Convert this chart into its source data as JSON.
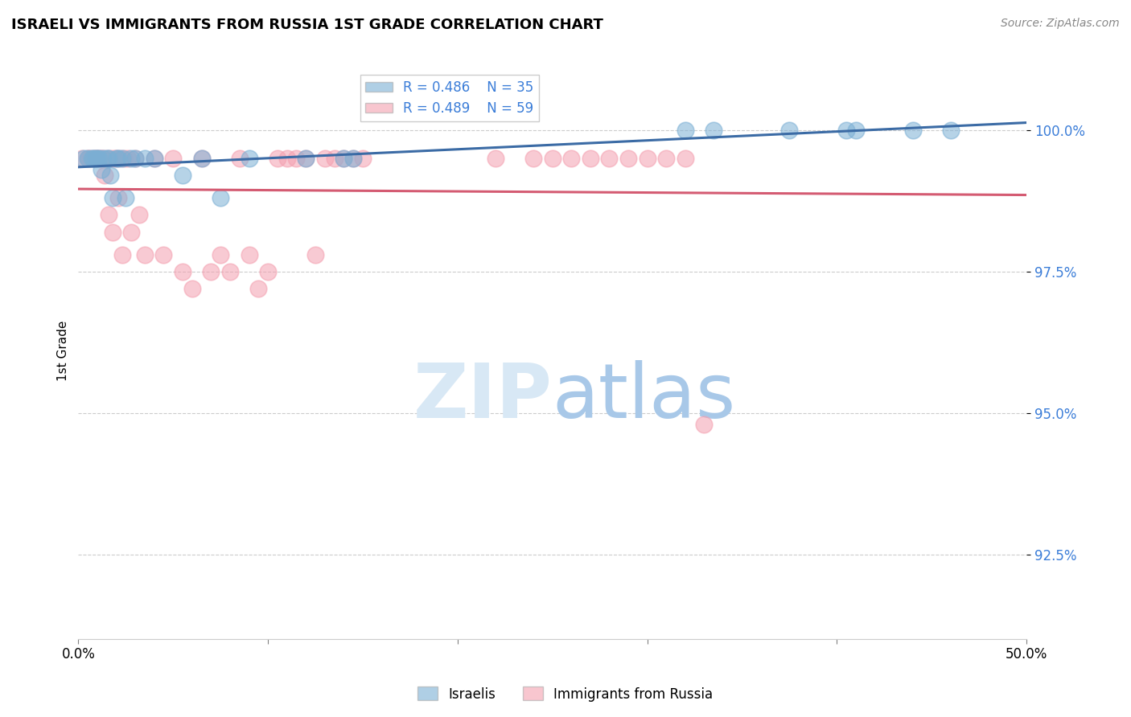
{
  "title": "ISRAELI VS IMMIGRANTS FROM RUSSIA 1ST GRADE CORRELATION CHART",
  "source": "Source: ZipAtlas.com",
  "ylabel": "1st Grade",
  "ytick_values": [
    92.5,
    95.0,
    97.5,
    100.0
  ],
  "xlim": [
    0.0,
    50.0
  ],
  "ylim": [
    91.0,
    101.2
  ],
  "legend_r_blue": "R = 0.486",
  "legend_n_blue": "N = 35",
  "legend_r_pink": "R = 0.489",
  "legend_n_pink": "N = 59",
  "legend_label_blue": "Israelis",
  "legend_label_pink": "Immigrants from Russia",
  "blue_color": "#7BAFD4",
  "pink_color": "#F4A0B0",
  "trend_blue": "#3B6BA5",
  "trend_pink": "#D45B72",
  "israelis_x": [
    0.3,
    0.5,
    0.7,
    0.8,
    0.9,
    1.0,
    1.1,
    1.2,
    1.3,
    1.5,
    1.6,
    1.7,
    1.8,
    2.0,
    2.1,
    2.3,
    2.5,
    2.8,
    3.0,
    3.5,
    4.0,
    5.5,
    6.5,
    7.5,
    9.0,
    12.0,
    14.0,
    14.5,
    32.0,
    33.5,
    37.5,
    40.5,
    41.0,
    44.0,
    46.0
  ],
  "israelis_y": [
    99.5,
    99.5,
    99.5,
    99.5,
    99.5,
    99.5,
    99.5,
    99.3,
    99.5,
    99.5,
    99.5,
    99.2,
    98.8,
    99.5,
    99.5,
    99.5,
    98.8,
    99.5,
    99.5,
    99.5,
    99.5,
    99.2,
    99.5,
    98.8,
    99.5,
    99.5,
    99.5,
    99.5,
    100.0,
    100.0,
    100.0,
    100.0,
    100.0,
    100.0,
    100.0
  ],
  "immigrants_x": [
    0.2,
    0.5,
    0.6,
    0.8,
    0.9,
    1.0,
    1.1,
    1.2,
    1.3,
    1.4,
    1.5,
    1.6,
    1.7,
    1.8,
    1.9,
    2.0,
    2.1,
    2.2,
    2.3,
    2.4,
    2.6,
    2.8,
    3.0,
    3.2,
    3.5,
    4.0,
    4.5,
    5.0,
    5.5,
    6.0,
    6.5,
    7.0,
    7.5,
    8.0,
    8.5,
    9.0,
    9.5,
    10.0,
    10.5,
    11.0,
    11.5,
    12.0,
    12.5,
    13.0,
    13.5,
    14.0,
    14.5,
    15.0,
    22.0,
    24.0,
    25.0,
    26.0,
    27.0,
    28.0,
    29.0,
    30.0,
    31.0,
    32.0,
    33.0
  ],
  "immigrants_y": [
    99.5,
    99.5,
    99.5,
    99.5,
    99.5,
    99.5,
    99.5,
    99.5,
    99.5,
    99.2,
    99.5,
    98.5,
    99.5,
    98.2,
    99.5,
    99.5,
    98.8,
    99.5,
    97.8,
    99.5,
    99.5,
    98.2,
    99.5,
    98.5,
    97.8,
    99.5,
    97.8,
    99.5,
    97.5,
    97.2,
    99.5,
    97.5,
    97.8,
    97.5,
    99.5,
    97.8,
    97.2,
    97.5,
    99.5,
    99.5,
    99.5,
    99.5,
    97.8,
    99.5,
    99.5,
    99.5,
    99.5,
    99.5,
    99.5,
    99.5,
    99.5,
    99.5,
    99.5,
    99.5,
    99.5,
    99.5,
    99.5,
    99.5,
    94.8
  ]
}
